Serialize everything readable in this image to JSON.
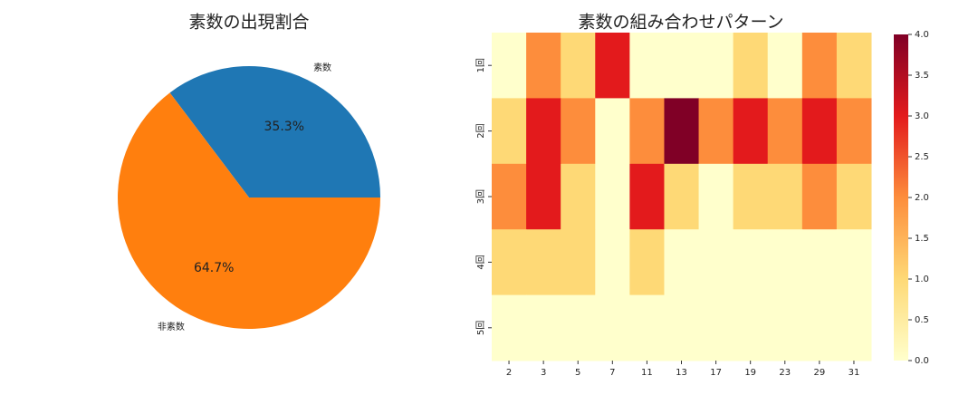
{
  "chart_data": [
    {
      "type": "pie",
      "title": "素数の出現割合",
      "categories": [
        "素数",
        "非素数"
      ],
      "values": [
        35.3,
        64.7
      ],
      "value_labels": [
        "35.3%",
        "64.7%"
      ],
      "colors": [
        "#1f77b4",
        "#ff7f0e"
      ]
    },
    {
      "type": "heatmap",
      "title": "素数の組み合わせパターン",
      "x": [
        "2",
        "3",
        "5",
        "7",
        "11",
        "13",
        "17",
        "19",
        "23",
        "29",
        "31"
      ],
      "y": [
        "1回",
        "2回",
        "3回",
        "4回",
        "5回"
      ],
      "values": [
        [
          0,
          2,
          1,
          3,
          0,
          0,
          0,
          1,
          0,
          2,
          1
        ],
        [
          1,
          3,
          2,
          0,
          2,
          4,
          2,
          3,
          2,
          3,
          2
        ],
        [
          2,
          3,
          1,
          0,
          3,
          1,
          0,
          1,
          1,
          2,
          1
        ],
        [
          1,
          1,
          1,
          0,
          1,
          0,
          0,
          0,
          0,
          0,
          0
        ],
        [
          0,
          0,
          0,
          0,
          0,
          0,
          0,
          0,
          0,
          0,
          0
        ]
      ],
      "colormap": [
        "#ffffcc",
        "#fed976",
        "#fd8d3c",
        "#e31a1c",
        "#800026"
      ],
      "clim": [
        0,
        4
      ],
      "cticks": [
        {
          "value": 0,
          "label": "0.0"
        },
        {
          "value": 0.5,
          "label": "0.5"
        },
        {
          "value": 1,
          "label": "1.0"
        },
        {
          "value": 1.5,
          "label": "1.5"
        },
        {
          "value": 2,
          "label": "2.0"
        },
        {
          "value": 2.5,
          "label": "2.5"
        },
        {
          "value": 3,
          "label": "3.0"
        },
        {
          "value": 3.5,
          "label": "3.5"
        },
        {
          "value": 4,
          "label": "4.0"
        }
      ]
    }
  ]
}
